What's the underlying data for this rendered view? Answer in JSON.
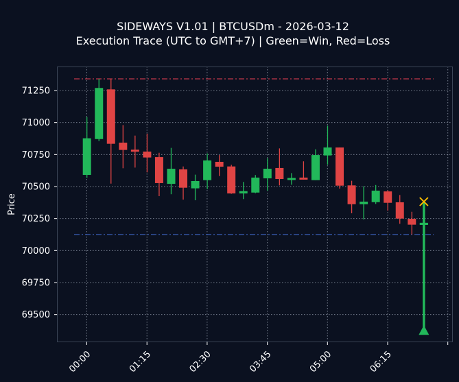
{
  "title": {
    "line1": "SIDEWAYS V1.01 | BTCUSDm - 2026-03-12",
    "line2": "Execution Trace (UTC to GMT+7) | Green=Win, Red=Loss"
  },
  "colors": {
    "background": "#0b1120",
    "axes_frame": "#3b4556",
    "grid": "#9aa3b2",
    "text": "#ffffff",
    "bull": "#22b85a",
    "bear": "#e04444",
    "upper_line": "#c0384a",
    "lower_line": "#3a5fb8",
    "exit_marker": "#f5b800",
    "entry_marker": "#22b85a"
  },
  "chart_data": {
    "type": "candlestick",
    "title": "SIDEWAYS V1.01 | BTCUSDm - 2026-03-12\nExecution Trace (UTC to GMT+7) | Green=Win, Red=Loss",
    "xlabel": "",
    "ylabel": "Price",
    "ylim": [
      69280,
      71430
    ],
    "yticks": [
      69500,
      69750,
      70000,
      70250,
      70500,
      70750,
      71000,
      71250
    ],
    "xtick_labels": [
      "00:00",
      "01:15",
      "02:30",
      "03:45",
      "05:00",
      "06:15",
      ""
    ],
    "grid": true,
    "interval_minutes": 15,
    "candles": [
      {
        "t": "00:00",
        "open": 70591,
        "high": 71043,
        "low": 70568,
        "close": 70877
      },
      {
        "t": "00:15",
        "open": 70871,
        "high": 71341,
        "low": 70855,
        "close": 71270
      },
      {
        "t": "00:30",
        "open": 71259,
        "high": 71341,
        "low": 70523,
        "close": 70834
      },
      {
        "t": "00:45",
        "open": 70843,
        "high": 70980,
        "low": 70643,
        "close": 70786
      },
      {
        "t": "01:00",
        "open": 70788,
        "high": 70898,
        "low": 70648,
        "close": 70772
      },
      {
        "t": "01:15",
        "open": 70773,
        "high": 70913,
        "low": 70611,
        "close": 70727
      },
      {
        "t": "01:30",
        "open": 70730,
        "high": 70764,
        "low": 70425,
        "close": 70527
      },
      {
        "t": "01:45",
        "open": 70521,
        "high": 70802,
        "low": 70440,
        "close": 70639
      },
      {
        "t": "02:00",
        "open": 70634,
        "high": 70657,
        "low": 70398,
        "close": 70491
      },
      {
        "t": "02:15",
        "open": 70486,
        "high": 70593,
        "low": 70393,
        "close": 70543
      },
      {
        "t": "02:30",
        "open": 70550,
        "high": 70759,
        "low": 70479,
        "close": 70704
      },
      {
        "t": "02:45",
        "open": 70693,
        "high": 70746,
        "low": 70582,
        "close": 70655
      },
      {
        "t": "03:00",
        "open": 70657,
        "high": 70670,
        "low": 70443,
        "close": 70446
      },
      {
        "t": "03:15",
        "open": 70446,
        "high": 70536,
        "low": 70402,
        "close": 70464
      },
      {
        "t": "03:30",
        "open": 70453,
        "high": 70590,
        "low": 70448,
        "close": 70570
      },
      {
        "t": "03:45",
        "open": 70564,
        "high": 70721,
        "low": 70468,
        "close": 70639
      },
      {
        "t": "04:00",
        "open": 70645,
        "high": 70798,
        "low": 70509,
        "close": 70559
      },
      {
        "t": "04:15",
        "open": 70554,
        "high": 70605,
        "low": 70514,
        "close": 70564
      },
      {
        "t": "04:30",
        "open": 70570,
        "high": 70697,
        "low": 70554,
        "close": 70554
      },
      {
        "t": "04:45",
        "open": 70550,
        "high": 70791,
        "low": 70550,
        "close": 70746
      },
      {
        "t": "05:00",
        "open": 70743,
        "high": 70975,
        "low": 70671,
        "close": 70805
      },
      {
        "t": "05:15",
        "open": 70805,
        "high": 70805,
        "low": 70484,
        "close": 70507
      },
      {
        "t": "05:30",
        "open": 70509,
        "high": 70545,
        "low": 70291,
        "close": 70362
      },
      {
        "t": "05:45",
        "open": 70362,
        "high": 70502,
        "low": 70243,
        "close": 70382
      },
      {
        "t": "06:00",
        "open": 70378,
        "high": 70512,
        "low": 70364,
        "close": 70468
      },
      {
        "t": "06:15",
        "open": 70462,
        "high": 70471,
        "low": 70311,
        "close": 70373
      },
      {
        "t": "06:30",
        "open": 70377,
        "high": 70434,
        "low": 70209,
        "close": 70250
      },
      {
        "t": "06:45",
        "open": 70248,
        "high": 70303,
        "low": 70125,
        "close": 70202
      },
      {
        "t": "07:00",
        "open": 70204,
        "high": 70243,
        "low": 70168,
        "close": 70213
      }
    ],
    "levels": [
      {
        "name": "upper",
        "price": 71341,
        "style": "dash-dot",
        "color": "#c0384a"
      },
      {
        "name": "lower",
        "price": 70125,
        "style": "dash-dot",
        "color": "#3a5fb8"
      }
    ],
    "trade": {
      "candle_index": 28,
      "entry_marker": "triangle-up",
      "entry_price": 69368,
      "exit_marker": "x",
      "exit_price": 70382,
      "result": "win"
    }
  }
}
